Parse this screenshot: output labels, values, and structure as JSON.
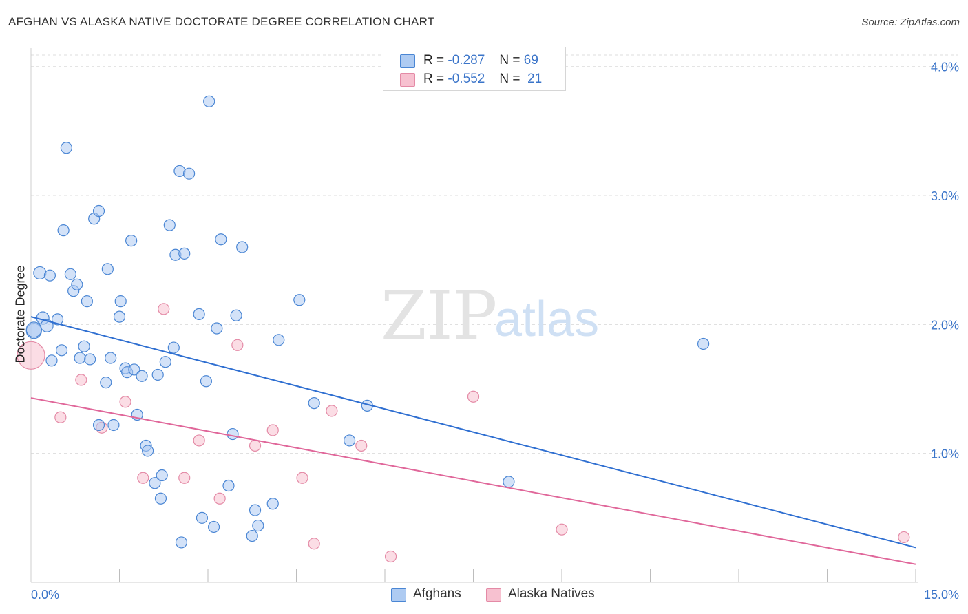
{
  "title": "AFGHAN VS ALASKA NATIVE DOCTORATE DEGREE CORRELATION CHART",
  "source": "Source: ZipAtlas.com",
  "watermark": {
    "zip": "ZIP",
    "atlas": "atlas"
  },
  "legend": {
    "rows": [
      {
        "r_label": "R =",
        "r_value": "-0.287",
        "n_label": "N =",
        "n_value": "69"
      },
      {
        "r_label": "R =",
        "r_value": "-0.552",
        "n_label": "N =",
        "n_value": "21"
      }
    ]
  },
  "bottom_legend": {
    "afghans": "Afghans",
    "alaska_natives": "Alaska Natives"
  },
  "colors": {
    "afghans_fill": "#aecbf2",
    "afghans_stroke": "#4a86d4",
    "afghans_line": "#2f6fd1",
    "alaska_fill": "#f7c1d0",
    "alaska_stroke": "#e48aa6",
    "alaska_line": "#e0679a",
    "tick_label": "#3a74c9",
    "grid": "#dcdcdc"
  },
  "chart_data": {
    "type": "scatter",
    "title": "AFGHAN VS ALASKA NATIVE DOCTORATE DEGREE CORRELATION CHART",
    "xlabel": "",
    "ylabel": "Doctorate Degree",
    "xlim": [
      0,
      15
    ],
    "ylim": [
      0,
      4.1
    ],
    "x_tick_labels": [
      "0.0%",
      "15.0%"
    ],
    "y_ticks": [
      1,
      2,
      3,
      4
    ],
    "y_tick_labels": [
      "1.0%",
      "2.0%",
      "3.0%",
      "4.0%"
    ],
    "series": [
      {
        "name": "Afghans",
        "r": -0.287,
        "n": 69,
        "trendline": {
          "x": [
            0,
            15
          ],
          "y": [
            2.06,
            0.27
          ]
        },
        "points": [
          [
            0.05,
            1.95
          ],
          [
            0.05,
            1.96
          ],
          [
            0.15,
            2.4
          ],
          [
            0.2,
            2.05
          ],
          [
            0.27,
            1.99
          ],
          [
            0.32,
            2.38
          ],
          [
            0.35,
            1.72
          ],
          [
            0.45,
            2.04
          ],
          [
            0.52,
            1.8
          ],
          [
            0.55,
            2.73
          ],
          [
            0.6,
            3.37
          ],
          [
            0.67,
            2.39
          ],
          [
            0.72,
            2.26
          ],
          [
            0.78,
            2.31
          ],
          [
            0.83,
            1.74
          ],
          [
            0.9,
            1.83
          ],
          [
            0.95,
            2.18
          ],
          [
            1.0,
            1.73
          ],
          [
            1.07,
            2.82
          ],
          [
            1.15,
            2.88
          ],
          [
            1.15,
            1.22
          ],
          [
            1.27,
            1.55
          ],
          [
            1.3,
            2.43
          ],
          [
            1.35,
            1.74
          ],
          [
            1.4,
            1.22
          ],
          [
            1.5,
            2.06
          ],
          [
            1.52,
            2.18
          ],
          [
            1.6,
            1.66
          ],
          [
            1.63,
            1.63
          ],
          [
            1.7,
            2.65
          ],
          [
            1.75,
            1.65
          ],
          [
            1.8,
            1.3
          ],
          [
            1.88,
            1.6
          ],
          [
            1.95,
            1.06
          ],
          [
            1.98,
            1.02
          ],
          [
            2.1,
            0.77
          ],
          [
            2.15,
            1.61
          ],
          [
            2.2,
            0.65
          ],
          [
            2.22,
            0.83
          ],
          [
            2.28,
            1.71
          ],
          [
            2.35,
            2.77
          ],
          [
            2.42,
            1.82
          ],
          [
            2.45,
            2.54
          ],
          [
            2.52,
            3.19
          ],
          [
            2.6,
            2.55
          ],
          [
            2.68,
            3.17
          ],
          [
            2.85,
            2.08
          ],
          [
            2.9,
            0.5
          ],
          [
            2.97,
            1.56
          ],
          [
            3.02,
            3.73
          ],
          [
            3.1,
            0.43
          ],
          [
            3.15,
            1.97
          ],
          [
            3.22,
            2.66
          ],
          [
            3.35,
            0.75
          ],
          [
            3.42,
            1.15
          ],
          [
            3.48,
            2.07
          ],
          [
            3.58,
            2.6
          ],
          [
            3.75,
            0.36
          ],
          [
            3.8,
            0.56
          ],
          [
            3.85,
            0.44
          ],
          [
            4.1,
            0.61
          ],
          [
            4.2,
            1.88
          ],
          [
            4.55,
            2.19
          ],
          [
            4.8,
            1.39
          ],
          [
            5.4,
            1.1
          ],
          [
            5.7,
            1.37
          ],
          [
            8.1,
            0.78
          ],
          [
            11.4,
            1.85
          ],
          [
            2.55,
            0.31
          ]
        ],
        "marker_size_hint": [
          22,
          22,
          18,
          18,
          18,
          16,
          16,
          16,
          16,
          16,
          16,
          16,
          16,
          16,
          16,
          16,
          16,
          16,
          16,
          16,
          16,
          16,
          16,
          16,
          16,
          16,
          16,
          16,
          16,
          16,
          16,
          16,
          16,
          16,
          16,
          16,
          16,
          16,
          16,
          16,
          16,
          16,
          16,
          16,
          16,
          16,
          16,
          16,
          16,
          16,
          16,
          16,
          16,
          16,
          16,
          16,
          16,
          16,
          16,
          16,
          16,
          16,
          16,
          16,
          16,
          16,
          16,
          16,
          16
        ]
      },
      {
        "name": "Alaska Natives",
        "r": -0.552,
        "n": 21,
        "trendline": {
          "x": [
            0,
            15
          ],
          "y": [
            1.43,
            0.14
          ]
        },
        "points": [
          [
            0.0,
            1.76
          ],
          [
            0.5,
            1.28
          ],
          [
            0.85,
            1.57
          ],
          [
            1.2,
            1.2
          ],
          [
            1.6,
            1.4
          ],
          [
            1.9,
            0.81
          ],
          [
            2.25,
            2.12
          ],
          [
            2.6,
            0.81
          ],
          [
            2.85,
            1.1
          ],
          [
            3.2,
            0.65
          ],
          [
            3.5,
            1.84
          ],
          [
            3.8,
            1.06
          ],
          [
            4.1,
            1.18
          ],
          [
            4.6,
            0.81
          ],
          [
            4.8,
            0.3
          ],
          [
            5.1,
            1.33
          ],
          [
            5.6,
            1.06
          ],
          [
            6.1,
            0.2
          ],
          [
            7.5,
            1.44
          ],
          [
            9.0,
            0.41
          ],
          [
            14.8,
            0.35
          ]
        ],
        "marker_size_hint": [
          40,
          16,
          16,
          16,
          16,
          16,
          16,
          16,
          16,
          16,
          16,
          16,
          16,
          16,
          16,
          16,
          16,
          16,
          16,
          16,
          16
        ]
      }
    ]
  }
}
